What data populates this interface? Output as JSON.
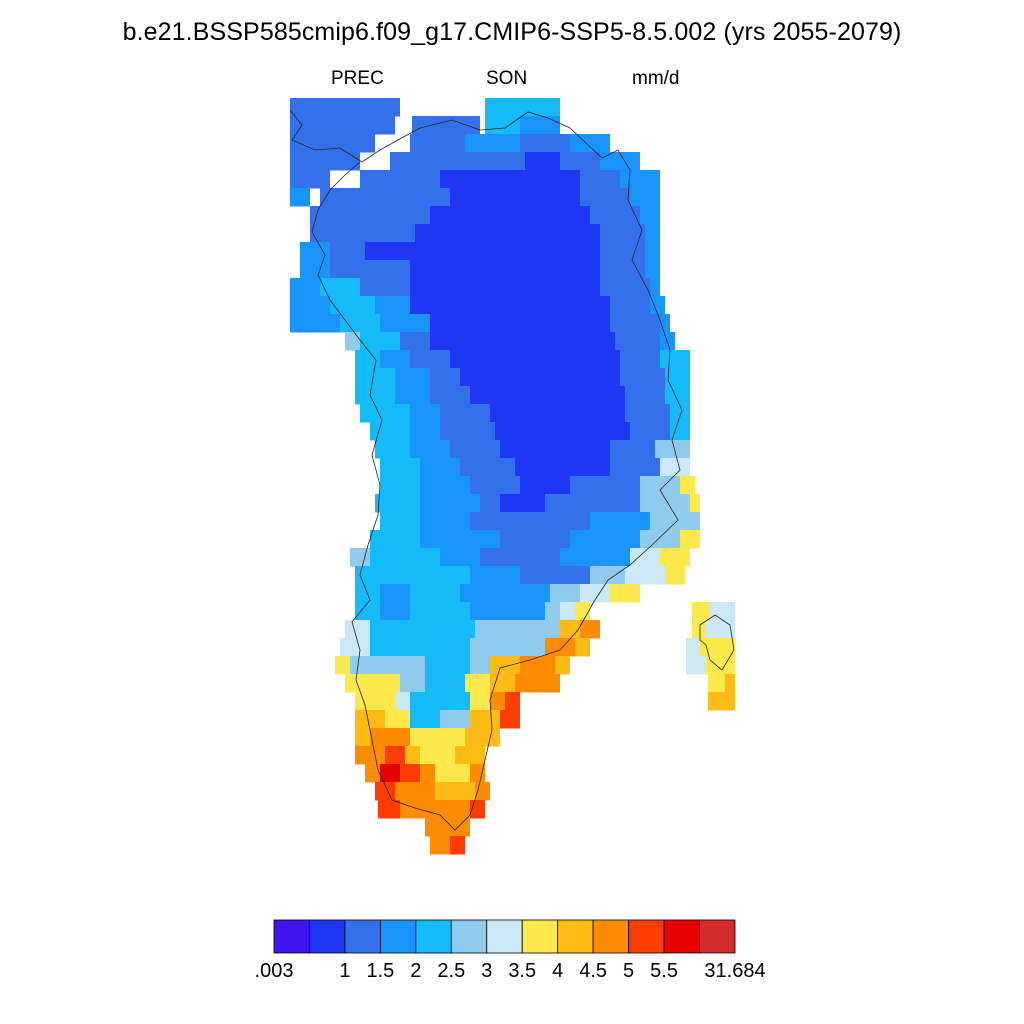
{
  "title": "b.e21.BSSP585cmip6.f09_g17.CMIP6-SSP5-8.5.002 (yrs 2055-2079)",
  "variable": "PREC",
  "season": "SON",
  "units": "mm/d",
  "colorbar": {
    "colors": [
      "#3f14f0",
      "#1f36f5",
      "#3570ec",
      "#1894fc",
      "#15baf8",
      "#8fcbed",
      "#cce8f6",
      "#fde94b",
      "#fdbb14",
      "#fd8c02",
      "#fb3d03",
      "#e70201",
      "#d42c2c"
    ],
    "tick_labels": [
      ".003",
      "1",
      "1.5",
      "2",
      "2.5",
      "3",
      "3.5",
      "4",
      "4.5",
      "5",
      "5.5",
      "31.684"
    ]
  }
}
